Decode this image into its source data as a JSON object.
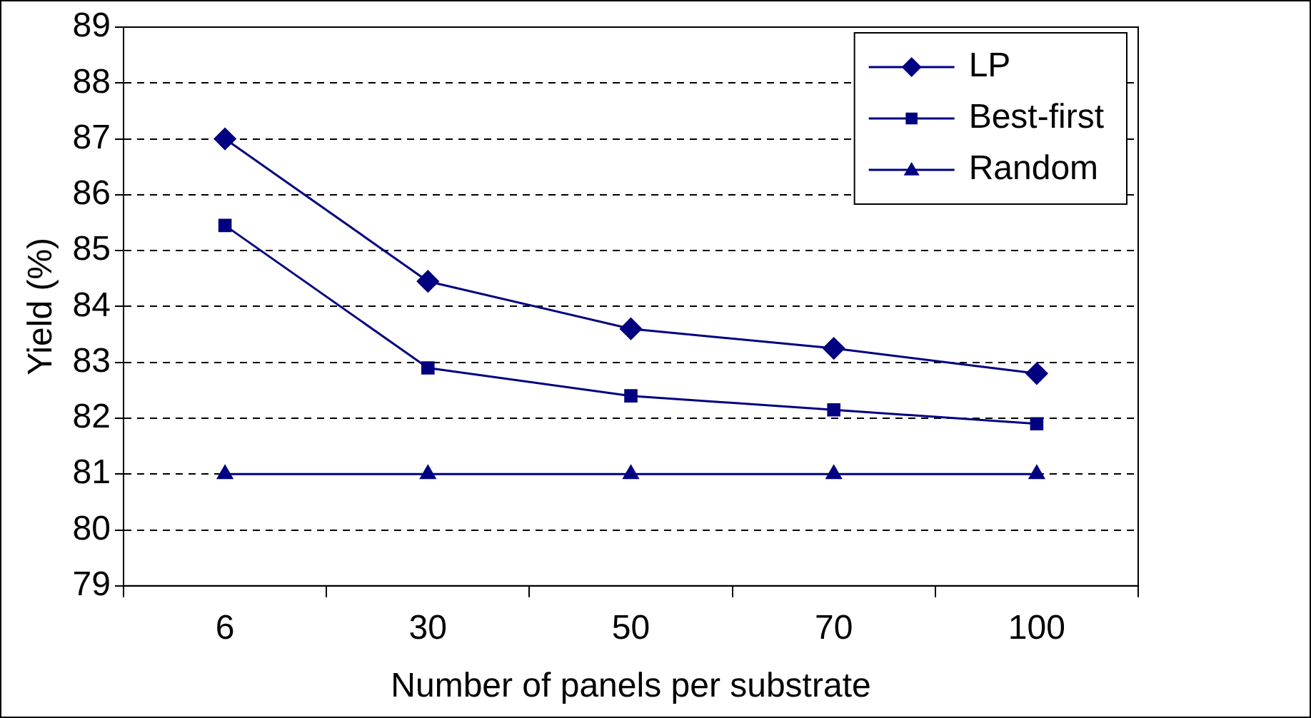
{
  "chart_data": {
    "type": "line",
    "xlabel": "Number of panels per substrate",
    "ylabel": "Yield (%)",
    "categories": [
      "6",
      "30",
      "50",
      "70",
      "100"
    ],
    "series": [
      {
        "name": "LP",
        "color": "#000080",
        "marker": "diamond",
        "values": [
          87.0,
          84.45,
          83.6,
          83.25,
          82.8
        ]
      },
      {
        "name": "Best-first",
        "color": "#000080",
        "marker": "square",
        "values": [
          85.45,
          82.9,
          82.4,
          82.15,
          81.9
        ]
      },
      {
        "name": "Random",
        "color": "#000080",
        "marker": "triangle",
        "values": [
          81,
          81,
          81,
          81,
          81
        ]
      }
    ],
    "ylim": [
      79,
      89
    ],
    "yticks": [
      79,
      80,
      81,
      82,
      83,
      84,
      85,
      86,
      87,
      88,
      89
    ],
    "grid": "y",
    "legend": "top right",
    "line_style": "solid"
  }
}
